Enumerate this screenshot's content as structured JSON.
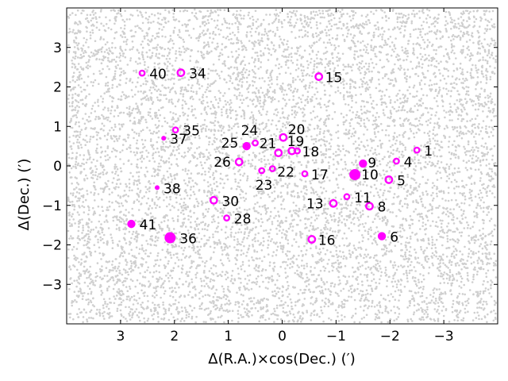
{
  "chart_data": {
    "type": "scatter",
    "xlabel": "Δ(R.A.)×cos(Dec.) (′)",
    "ylabel": "Δ(Dec.) (′)",
    "xlim": [
      4.0,
      -4.0
    ],
    "ylim": [
      -4.0,
      4.0
    ],
    "xticks": [
      3,
      2,
      1,
      0,
      -1,
      -2,
      -3
    ],
    "yticks": [
      -3,
      -2,
      -1,
      0,
      1,
      2,
      3
    ],
    "xtick_labels": [
      "3",
      "2",
      "1",
      "0",
      "−1",
      "−2",
      "−3"
    ],
    "ytick_labels": [
      "−3",
      "−2",
      "−1",
      "0",
      "1",
      "2",
      "3"
    ],
    "grid": false,
    "background_field": {
      "color": "#cfcfcf",
      "description": "dense uniform field of small gray dots"
    },
    "marker_color": "#ff00ff",
    "points": [
      {
        "id": "1",
        "x": -2.5,
        "y": 0.4,
        "style": "ring",
        "size": "small"
      },
      {
        "id": "4",
        "x": -2.12,
        "y": 0.12,
        "style": "ring",
        "size": "small"
      },
      {
        "id": "5",
        "x": -1.98,
        "y": -0.35,
        "style": "ring",
        "size": "medium"
      },
      {
        "id": "6",
        "x": -1.85,
        "y": -1.78,
        "style": "filled",
        "size": "medium"
      },
      {
        "id": "8",
        "x": -1.62,
        "y": -1.02,
        "style": "ring",
        "size": "medium"
      },
      {
        "id": "9",
        "x": -1.5,
        "y": 0.06,
        "style": "filled",
        "size": "medium"
      },
      {
        "id": "10",
        "x": -1.35,
        "y": -0.22,
        "style": "filled",
        "size": "large"
      },
      {
        "id": "11",
        "x": -1.2,
        "y": -0.78,
        "style": "ring",
        "size": "small"
      },
      {
        "id": "13",
        "x": -0.95,
        "y": -0.95,
        "style": "ring",
        "size": "medium"
      },
      {
        "id": "15",
        "x": -0.68,
        "y": 2.26,
        "style": "ring",
        "size": "medium"
      },
      {
        "id": "16",
        "x": -0.55,
        "y": -1.86,
        "style": "ring",
        "size": "medium"
      },
      {
        "id": "17",
        "x": -0.42,
        "y": -0.2,
        "style": "ring",
        "size": "small"
      },
      {
        "id": "18",
        "x": -0.28,
        "y": 0.38,
        "style": "ring",
        "size": "small"
      },
      {
        "id": "19",
        "x": -0.18,
        "y": 0.38,
        "style": "ring",
        "size": "medium"
      },
      {
        "id": "20",
        "x": -0.02,
        "y": 0.72,
        "style": "ring",
        "size": "medium"
      },
      {
        "id": "21",
        "x": 0.07,
        "y": 0.33,
        "style": "ring",
        "size": "medium"
      },
      {
        "id": "22",
        "x": 0.18,
        "y": -0.07,
        "style": "ring",
        "size": "small"
      },
      {
        "id": "23",
        "x": 0.38,
        "y": -0.12,
        "style": "ring",
        "size": "small"
      },
      {
        "id": "24",
        "x": 0.5,
        "y": 0.58,
        "style": "ring",
        "size": "small"
      },
      {
        "id": "25",
        "x": 0.66,
        "y": 0.5,
        "style": "filled",
        "size": "medium"
      },
      {
        "id": "26",
        "x": 0.8,
        "y": 0.1,
        "style": "ring",
        "size": "medium"
      },
      {
        "id": "28",
        "x": 1.03,
        "y": -1.32,
        "style": "ring",
        "size": "small"
      },
      {
        "id": "30",
        "x": 1.27,
        "y": -0.87,
        "style": "ring",
        "size": "medium"
      },
      {
        "id": "34",
        "x": 1.88,
        "y": 2.36,
        "style": "ring",
        "size": "medium"
      },
      {
        "id": "35",
        "x": 1.98,
        "y": 0.91,
        "style": "ring",
        "size": "small"
      },
      {
        "id": "36",
        "x": 2.08,
        "y": -1.82,
        "style": "filled",
        "size": "large"
      },
      {
        "id": "37",
        "x": 2.2,
        "y": 0.7,
        "style": "filled",
        "size": "tiny"
      },
      {
        "id": "38",
        "x": 2.32,
        "y": -0.55,
        "style": "filled",
        "size": "tiny"
      },
      {
        "id": "40",
        "x": 2.6,
        "y": 2.35,
        "style": "ring",
        "size": "small"
      },
      {
        "id": "41",
        "x": 2.8,
        "y": -1.47,
        "style": "filled",
        "size": "medium"
      }
    ]
  }
}
